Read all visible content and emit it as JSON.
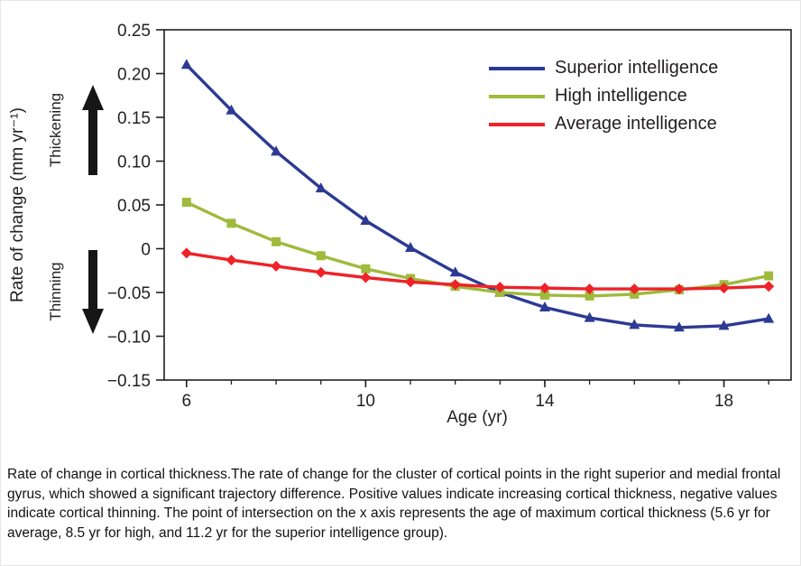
{
  "figure": {
    "y_axis_title": "Rate of change (mm yr⁻¹)",
    "x_axis_title": "Age (yr)",
    "thickening_label": "Thickening",
    "thinning_label": "Thinning"
  },
  "caption": "Rate of change in cortical thickness.The rate of change for the cluster of cortical points in the right superior and medial frontal gyrus, which showed a significant trajectory difference. Positive values indicate increasing cortical thickness, negative values indicate cortical thinning. The point of intersection on the x axis represents the age of maximum cortical thickness (5.6 yr for average, 8.5 yr for high, and 11.2 yr for the superior intelligence group).",
  "chart_data": {
    "type": "line",
    "title": "",
    "xlabel": "Age (yr)",
    "ylabel": "Rate of change (mm yr⁻¹)",
    "x": [
      6,
      7,
      8,
      9,
      10,
      11,
      12,
      13,
      14,
      15,
      16,
      17,
      18,
      19
    ],
    "series": [
      {
        "name": "Superior intelligence",
        "color": "#2c3a94",
        "marker": "triangle",
        "values": [
          0.21,
          0.158,
          0.111,
          0.069,
          0.032,
          0.001,
          -0.027,
          -0.05,
          -0.067,
          -0.079,
          -0.087,
          -0.09,
          -0.088,
          -0.08
        ]
      },
      {
        "name": "High intelligence",
        "color": "#9fba3c",
        "marker": "square",
        "values": [
          0.053,
          0.029,
          0.008,
          -0.008,
          -0.023,
          -0.034,
          -0.043,
          -0.05,
          -0.053,
          -0.054,
          -0.052,
          -0.047,
          -0.041,
          -0.031
        ]
      },
      {
        "name": "Average intelligence",
        "color": "#ee2228",
        "marker": "diamond",
        "values": [
          -0.005,
          -0.013,
          -0.02,
          -0.027,
          -0.033,
          -0.038,
          -0.041,
          -0.044,
          -0.045,
          -0.046,
          -0.046,
          -0.046,
          -0.045,
          -0.043
        ]
      }
    ],
    "xlim": [
      5.5,
      19.5
    ],
    "ylim": [
      -0.15,
      0.25
    ],
    "x_major_ticks": [
      6,
      10,
      14,
      18
    ],
    "x_minor_ticks": [
      6,
      7,
      8,
      9,
      10,
      11,
      12,
      13,
      14,
      15,
      16,
      17,
      18,
      19
    ],
    "y_ticks": [
      0.25,
      0.2,
      0.15,
      0.1,
      0.05,
      0,
      -0.05,
      -0.1,
      -0.15
    ],
    "y_tick_labels": [
      "0.25",
      "0.20",
      "0.15",
      "0.10",
      "0.05",
      "0",
      "−0.05",
      "−0.10",
      "−0.15"
    ],
    "grid": false,
    "legend_position": "top-right",
    "axis_color": "#231f20"
  }
}
